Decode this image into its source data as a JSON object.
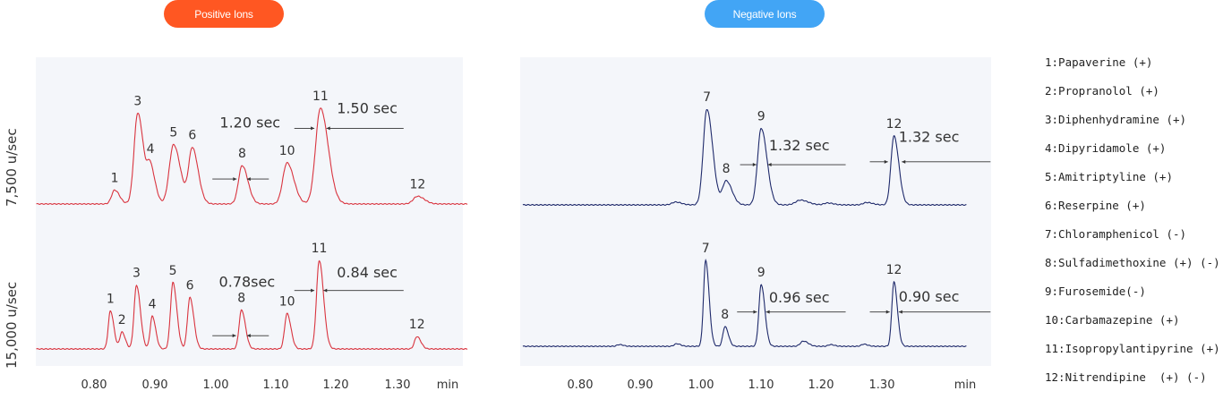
{
  "badges": {
    "positive": {
      "label": "Positive Ions",
      "color": "#ff5722"
    },
    "negative": {
      "label": "Negative Ions",
      "color": "#42a5f5"
    }
  },
  "row_labels": [
    "7,500 u/sec",
    "15,000 u/sec"
  ],
  "colors": {
    "positive_trace": "#d9343f",
    "negative_trace": "#1f2a6b",
    "panel_bg": "#f4f6fa",
    "text": "#333333"
  },
  "legend": [
    "1:Papaverine (+)",
    "2:Propranolol (+)",
    "3:Diphenhydramine (+)",
    "4:Dipyridamole (+)",
    "5:Amitriptyline (+)",
    "6:Reserpine (+)",
    "7:Chloramphenicol (-)",
    "8:Sulfadimethoxine (+) (-)",
    "9:Furosemide(-)",
    "10:Carbamazepine (+)",
    "11:Isopropylantipyrine (+)",
    "12:Nitrendipine  (+) (-)"
  ],
  "chart_data": [
    {
      "type": "line",
      "panel": "positive",
      "row": "7,500 u/sec",
      "xlim": [
        0.705,
        1.415
      ],
      "ylim": [
        0,
        1.0
      ],
      "xticks": [
        "0.80",
        "0.90",
        "1.00",
        "1.10",
        "1.20",
        "1.30"
      ],
      "xunit": "min",
      "baseline": 0.01,
      "peaks": [
        {
          "label": "1",
          "x": 0.834,
          "y": 0.145,
          "w": 0.005
        },
        {
          "label": "3",
          "x": 0.872,
          "y": 0.95,
          "w": 0.006
        },
        {
          "label": "4",
          "x": 0.893,
          "y": 0.36,
          "w": 0.005
        },
        {
          "label": "5",
          "x": 0.931,
          "y": 0.62,
          "w": 0.007
        },
        {
          "label": "6",
          "x": 0.962,
          "y": 0.58,
          "w": 0.006
        },
        {
          "label": "8",
          "x": 1.044,
          "y": 0.4,
          "w": 0.006
        },
        {
          "label": "10",
          "x": 1.118,
          "y": 0.43,
          "w": 0.007
        },
        {
          "label": "11",
          "x": 1.173,
          "y": 1.0,
          "w": 0.008
        },
        {
          "label": "12",
          "x": 1.333,
          "y": 0.08,
          "w": 0.007
        }
      ],
      "annotations": [
        {
          "text": "1.20 sec",
          "x": 1.057,
          "y": 0.81
        },
        {
          "text": "1.50 sec",
          "x": 1.25,
          "y": 0.96
        }
      ],
      "arrows": [
        {
          "x1": 0.995,
          "x2": 1.035,
          "y": 0.27
        },
        {
          "x1": 1.088,
          "x2": 1.052,
          "y": 0.27
        },
        {
          "x1": 1.13,
          "x2": 1.163,
          "y": 0.8
        },
        {
          "x1": 1.31,
          "x2": 1.183,
          "y": 0.8
        }
      ]
    },
    {
      "type": "line",
      "panel": "positive",
      "row": "15,000 u/sec",
      "xlim": [
        0.705,
        1.415
      ],
      "ylim": [
        0,
        1.0
      ],
      "xticks": [
        "0.80",
        "0.90",
        "1.00",
        "1.10",
        "1.20",
        "1.30"
      ],
      "xunit": "min",
      "baseline": 0.01,
      "peaks": [
        {
          "label": "1",
          "x": 0.827,
          "y": 0.43,
          "w": 0.0035
        },
        {
          "label": "2",
          "x": 0.846,
          "y": 0.19,
          "w": 0.0035
        },
        {
          "label": "3",
          "x": 0.87,
          "y": 0.72,
          "w": 0.004
        },
        {
          "label": "4",
          "x": 0.896,
          "y": 0.37,
          "w": 0.0035
        },
        {
          "label": "5",
          "x": 0.93,
          "y": 0.75,
          "w": 0.004
        },
        {
          "label": "6",
          "x": 0.958,
          "y": 0.58,
          "w": 0.004
        },
        {
          "label": "8",
          "x": 1.043,
          "y": 0.44,
          "w": 0.004
        },
        {
          "label": "10",
          "x": 1.118,
          "y": 0.4,
          "w": 0.004
        },
        {
          "label": "11",
          "x": 1.171,
          "y": 1.0,
          "w": 0.0045
        },
        {
          "label": "12",
          "x": 1.332,
          "y": 0.14,
          "w": 0.004
        }
      ],
      "annotations": [
        {
          "text": "0.78sec",
          "x": 1.052,
          "y": 0.71
        },
        {
          "text": "0.84 sec",
          "x": 1.25,
          "y": 0.82
        }
      ],
      "arrows": [
        {
          "x1": 0.995,
          "x2": 1.034,
          "y": 0.16
        },
        {
          "x1": 1.088,
          "x2": 1.052,
          "y": 0.16
        },
        {
          "x1": 1.13,
          "x2": 1.163,
          "y": 0.67
        },
        {
          "x1": 1.31,
          "x2": 1.178,
          "y": 0.67
        }
      ]
    },
    {
      "type": "line",
      "panel": "negative",
      "row": "7,500 u/sec",
      "xlim": [
        0.705,
        1.48
      ],
      "ylim": [
        0,
        1.0
      ],
      "xticks": [
        "0.80",
        "0.90",
        "1.00",
        "1.10",
        "1.20",
        "1.30"
      ],
      "xunit": "min",
      "baseline": 0.0,
      "peaks": [
        {
          "label": "7",
          "x": 1.01,
          "y": 1.0,
          "w": 0.006
        },
        {
          "label": "8",
          "x": 1.042,
          "y": 0.25,
          "w": 0.006
        },
        {
          "label": "9",
          "x": 1.1,
          "y": 0.8,
          "w": 0.006
        },
        {
          "label": "12",
          "x": 1.32,
          "y": 0.72,
          "w": 0.005
        }
      ],
      "minor_peaks": [
        {
          "x": 0.958,
          "y": 0.03,
          "w": 0.006
        },
        {
          "x": 1.165,
          "y": 0.05,
          "w": 0.008
        },
        {
          "x": 1.21,
          "y": 0.02,
          "w": 0.006
        },
        {
          "x": 1.275,
          "y": 0.025,
          "w": 0.006
        }
      ],
      "annotations": [
        {
          "text": "1.32 sec",
          "x": 1.163,
          "y": 0.57
        },
        {
          "text": "1.32 sec",
          "x": 1.378,
          "y": 0.66
        }
      ],
      "arrows": [
        {
          "x1": 1.065,
          "x2": 1.092,
          "y": 0.42
        },
        {
          "x1": 1.24,
          "x2": 1.111,
          "y": 0.42
        },
        {
          "x1": 1.28,
          "x2": 1.31,
          "y": 0.45
        },
        {
          "x1": 1.48,
          "x2": 1.333,
          "y": 0.45
        }
      ]
    },
    {
      "type": "line",
      "panel": "negative",
      "row": "15,000 u/sec",
      "xlim": [
        0.705,
        1.48
      ],
      "ylim": [
        0,
        1.0
      ],
      "xticks": [
        "0.80",
        "0.90",
        "1.00",
        "1.10",
        "1.20",
        "1.30"
      ],
      "xunit": "min",
      "baseline": 0.01,
      "peaks": [
        {
          "label": "7",
          "x": 1.008,
          "y": 1.0,
          "w": 0.0035
        },
        {
          "label": "8",
          "x": 1.04,
          "y": 0.23,
          "w": 0.0035
        },
        {
          "label": "9",
          "x": 1.1,
          "y": 0.72,
          "w": 0.0038
        },
        {
          "label": "12",
          "x": 1.32,
          "y": 0.75,
          "w": 0.0035
        }
      ],
      "minor_peaks": [
        {
          "x": 0.865,
          "y": 0.02,
          "w": 0.004
        },
        {
          "x": 0.96,
          "y": 0.03,
          "w": 0.004
        },
        {
          "x": 1.17,
          "y": 0.06,
          "w": 0.005
        },
        {
          "x": 1.215,
          "y": 0.02,
          "w": 0.004
        },
        {
          "x": 1.27,
          "y": 0.025,
          "w": 0.004
        }
      ],
      "annotations": [
        {
          "text": "0.96 sec",
          "x": 1.163,
          "y": 0.52
        },
        {
          "text": "0.90 sec",
          "x": 1.378,
          "y": 0.53
        }
      ],
      "arrows": [
        {
          "x1": 1.06,
          "x2": 1.093,
          "y": 0.41
        },
        {
          "x1": 1.24,
          "x2": 1.108,
          "y": 0.41
        },
        {
          "x1": 1.28,
          "x2": 1.313,
          "y": 0.41
        },
        {
          "x1": 1.48,
          "x2": 1.328,
          "y": 0.41
        }
      ]
    }
  ]
}
